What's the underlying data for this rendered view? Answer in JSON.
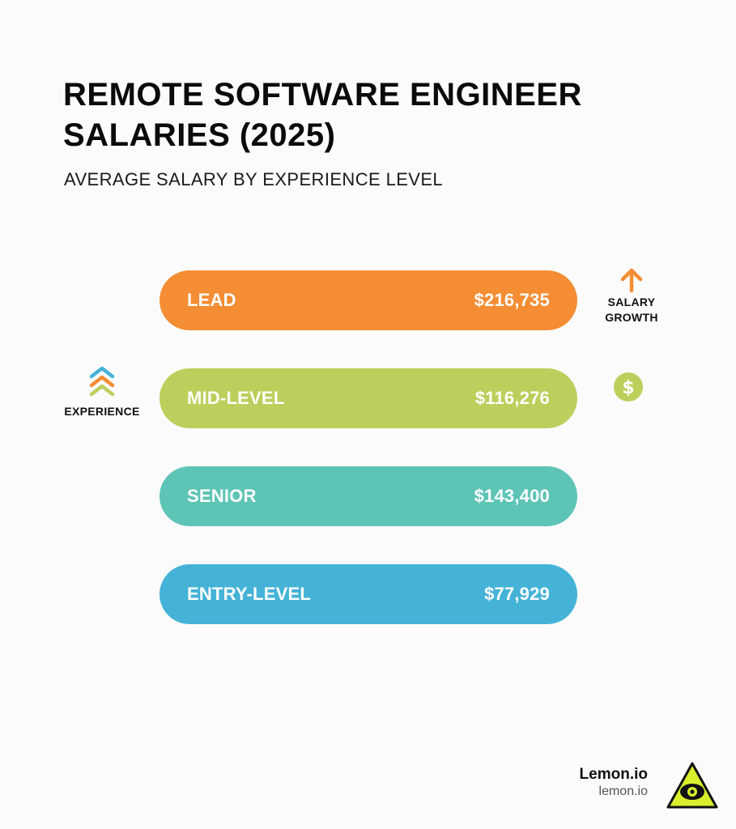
{
  "chart_data": {
    "type": "bar",
    "orientation": "horizontal",
    "title": "REMOTE SOFTWARE ENGINEER SALARIES (2025)",
    "subtitle": "AVERAGE SALARY BY EXPERIENCE LEVEL",
    "categories": [
      "LEAD",
      "MID-LEVEL",
      "SENIOR",
      "ENTRY-LEVEL"
    ],
    "values": [
      216735,
      116276,
      143400,
      77929
    ],
    "value_labels": [
      "$216,735",
      "$116,276",
      "$143,400",
      "$77,929"
    ],
    "bar_colors": [
      "#f48d33",
      "#bccf5c",
      "#5ec4b6",
      "#45b3d8"
    ],
    "axis_labels": {
      "experience": "EXPERIENCE",
      "salary_growth": "SALARY\nGROWTH"
    },
    "grid": false,
    "legend": "none"
  },
  "icons": {
    "experience": "stacked-chevrons-up-icon",
    "salary_growth": "arrow-up-icon",
    "dollar": "dollar-coin-icon",
    "logo": "lemon-eye-triangle-icon"
  },
  "colors": {
    "orange": "#f48d33",
    "green": "#bccf5c",
    "teal": "#5ec4b6",
    "blue": "#45b3d8",
    "logo_yellow": "#d9ef2e"
  },
  "brand": {
    "name": "Lemon.io",
    "url": "lemon.io"
  }
}
